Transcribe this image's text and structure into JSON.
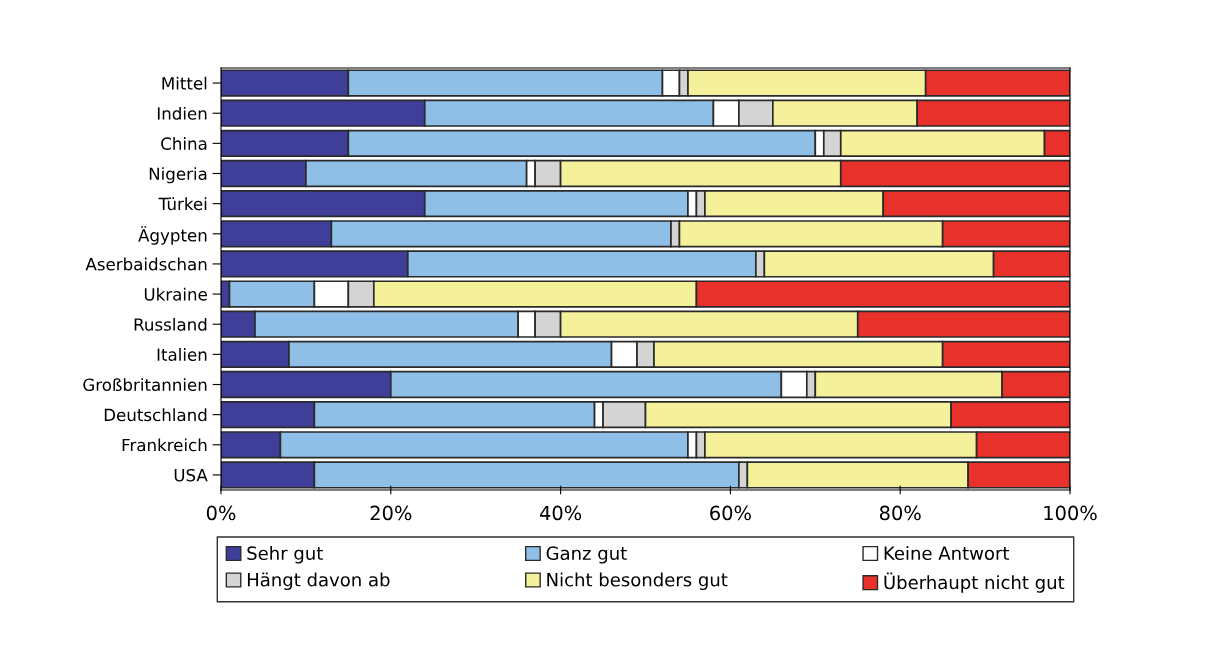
{
  "chart_data": {
    "type": "bar",
    "orientation": "horizontal",
    "stacked": true,
    "categories": [
      "Mittel",
      "Indien",
      "China",
      "Nigeria",
      "Türkei",
      "Ägypten",
      "Aserbaidschan",
      "Ukraine",
      "Russland",
      "Italien",
      "Großbritannien",
      "Deutschland",
      "Frankreich",
      "USA"
    ],
    "series": [
      {
        "name": "Sehr gut",
        "color": "#3f3f9a",
        "values": [
          15,
          24,
          15,
          10,
          24,
          13,
          22,
          1,
          4,
          8,
          20,
          11,
          7,
          11
        ]
      },
      {
        "name": "Ganz gut",
        "color": "#8fbfe6",
        "values": [
          37,
          34,
          55,
          26,
          31,
          40,
          41,
          10,
          31,
          38,
          46,
          33,
          48,
          50
        ]
      },
      {
        "name": "Keine Antwort",
        "color": "#ffffff",
        "values": [
          2,
          3,
          1,
          1,
          1,
          0,
          0,
          4,
          2,
          3,
          3,
          1,
          1,
          0
        ]
      },
      {
        "name": "Hängt davon ab",
        "color": "#d4d4d4",
        "values": [
          1,
          4,
          2,
          3,
          1,
          1,
          1,
          3,
          3,
          2,
          1,
          5,
          1,
          1
        ]
      },
      {
        "name": "Nicht besonders gut",
        "color": "#f5f19a",
        "values": [
          28,
          17,
          24,
          33,
          21,
          31,
          27,
          38,
          35,
          34,
          22,
          36,
          32,
          26
        ]
      },
      {
        "name": "Überhaupt nicht gut",
        "color": "#e8312a",
        "values": [
          17,
          18,
          3,
          27,
          22,
          15,
          9,
          44,
          25,
          15,
          8,
          14,
          11,
          12
        ]
      }
    ],
    "xlim": [
      0,
      100
    ],
    "xticks": [
      {
        "value": 0,
        "label": "0%"
      },
      {
        "value": 20,
        "label": "20%"
      },
      {
        "value": 40,
        "label": "40%"
      },
      {
        "value": 60,
        "label": "60%"
      },
      {
        "value": 80,
        "label": "80%"
      },
      {
        "value": 100,
        "label": "100%"
      }
    ],
    "legend": "bottom",
    "grid": false
  }
}
